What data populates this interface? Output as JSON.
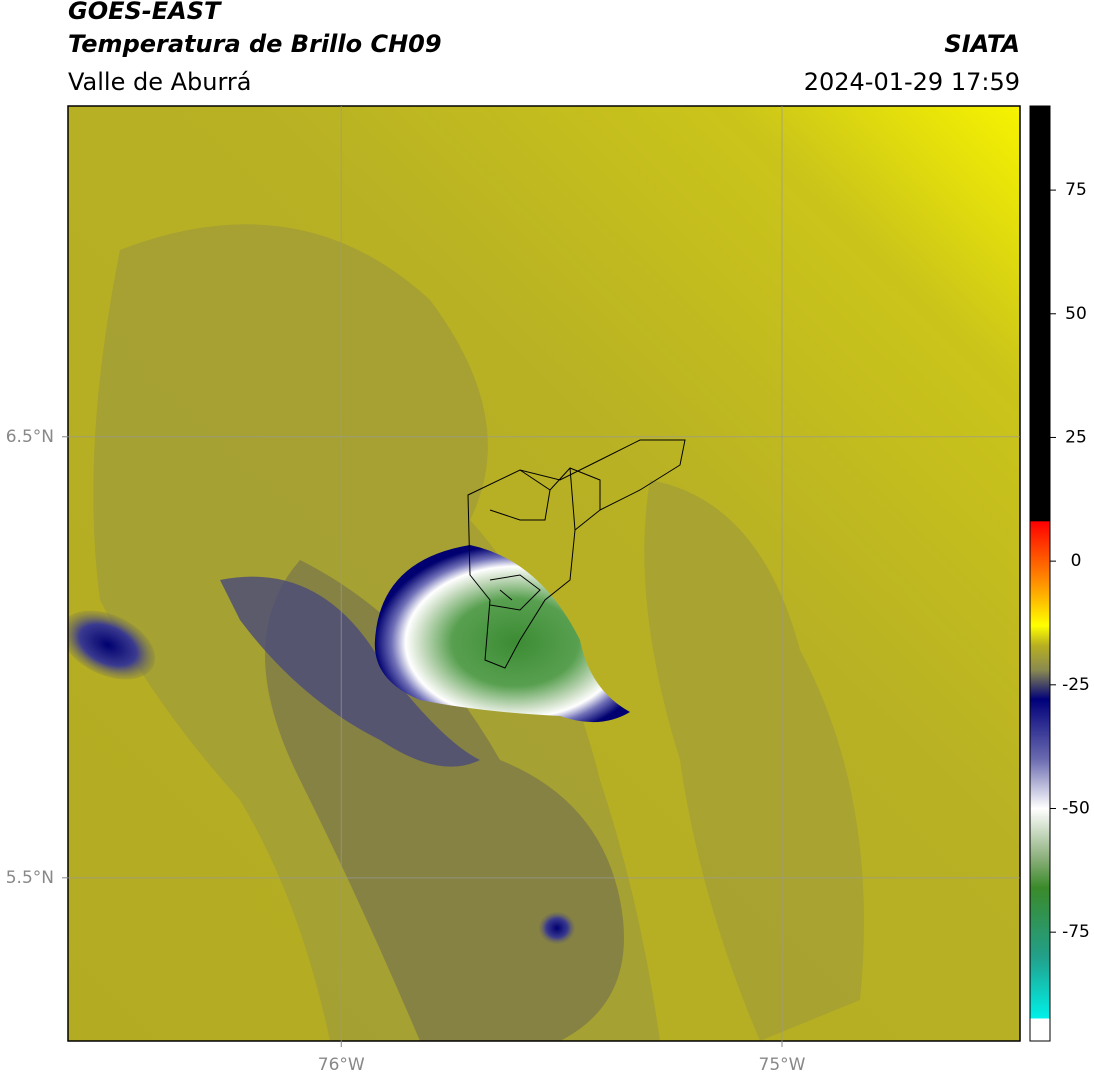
{
  "header": {
    "title": "GOES-EAST",
    "subtitle": "Temperatura de Brillo CH09",
    "region": "Valle de Aburrá",
    "source": "SIATA",
    "datetime": "2024-01-29 17:59"
  },
  "map": {
    "xlim": [
      -76.62,
      -74.46
    ],
    "ylim": [
      5.13,
      7.25
    ],
    "xticks": [
      {
        "value": -76,
        "label": "76°W"
      },
      {
        "value": -75,
        "label": "75°W"
      }
    ],
    "yticks": [
      {
        "value": 6.5,
        "label": "6.5°N"
      },
      {
        "value": 5.5,
        "label": "5.5°N"
      }
    ],
    "grid": true
  },
  "colorbar": {
    "lim": [
      -97,
      92
    ],
    "ticks": [
      75,
      50,
      25,
      0,
      -25,
      -50,
      -75
    ],
    "stops": [
      {
        "value": -97,
        "color": "#ffffff"
      },
      {
        "value": -92.5,
        "color": "#ffffff"
      },
      {
        "value": -92.4,
        "color": "#00f0e8"
      },
      {
        "value": -80,
        "color": "#22a08a"
      },
      {
        "value": -66,
        "color": "#3a8a2a"
      },
      {
        "value": -60,
        "color": "#8cb07c"
      },
      {
        "value": -50,
        "color": "#ffffff"
      },
      {
        "value": -40,
        "color": "#6a6ab0"
      },
      {
        "value": -28,
        "color": "#00007a"
      },
      {
        "value": -22,
        "color": "#8a8a50"
      },
      {
        "value": -17,
        "color": "#b8b020"
      },
      {
        "value": -13,
        "color": "#ffff00"
      },
      {
        "value": -5,
        "color": "#ff9900"
      },
      {
        "value": 8,
        "color": "#ff0000"
      },
      {
        "value": 8.1,
        "color": "#000000"
      },
      {
        "value": 92,
        "color": "#000000"
      }
    ]
  }
}
